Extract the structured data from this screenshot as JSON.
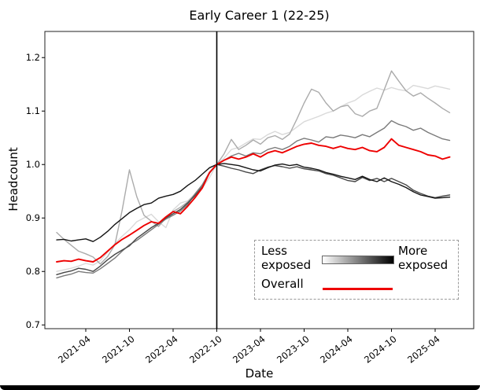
{
  "window": {
    "background_color": "#ffffff",
    "bottom_frame_color": "#000000"
  },
  "chart_data": {
    "type": "line",
    "title": "Early Career 1 (22-25)",
    "xlabel": "Date",
    "ylabel": "Headcount",
    "x_tick_labels": [
      "2021-04",
      "2021-10",
      "2022-04",
      "2022-10",
      "2023-04",
      "2023-10",
      "2024-04",
      "2024-10",
      "2025-04"
    ],
    "x_tick_point_indices": [
      4,
      10,
      16,
      22,
      28,
      34,
      40,
      46,
      52
    ],
    "y_tick_labels": [
      "0.7",
      "0.8",
      "0.9",
      "1.0",
      "1.1",
      "1.2"
    ],
    "y_tick_values": [
      0.7,
      0.8,
      0.9,
      1.0,
      1.1,
      1.2
    ],
    "ylim": [
      0.693,
      1.249
    ],
    "grid": false,
    "n_points": 55,
    "vline_at_point_index": 22,
    "vline_color": "#000000",
    "axes_color": "#222222",
    "legend": {
      "position": "lower-right",
      "border_style": "dashed",
      "less_label": "Less exposed",
      "more_label": "More exposed",
      "overall_label": "Overall",
      "gradient_colors": [
        "#ffffff",
        "#000000"
      ],
      "overall_color": "#ee0000"
    },
    "series": [
      {
        "name": "quintile-1-least-exposed",
        "color": "#d9d9d9",
        "width": 1.4,
        "values": [
          0.8,
          0.803,
          0.806,
          0.81,
          0.815,
          0.812,
          0.82,
          0.836,
          0.852,
          0.866,
          0.878,
          0.893,
          0.9,
          0.907,
          0.893,
          0.882,
          0.915,
          0.928,
          0.932,
          0.944,
          0.956,
          0.976,
          1.0,
          1.012,
          1.028,
          1.032,
          1.04,
          1.048,
          1.047,
          1.056,
          1.062,
          1.056,
          1.06,
          1.07,
          1.08,
          1.085,
          1.09,
          1.096,
          1.1,
          1.108,
          1.115,
          1.12,
          1.13,
          1.137,
          1.143,
          1.139,
          1.144,
          1.14,
          1.138,
          1.148,
          1.145,
          1.142,
          1.147,
          1.144,
          1.141
        ]
      },
      {
        "name": "quintile-2",
        "color": "#ababab",
        "width": 1.4,
        "values": [
          0.873,
          0.86,
          0.849,
          0.838,
          0.833,
          0.827,
          0.814,
          0.828,
          0.85,
          0.915,
          0.99,
          0.94,
          0.905,
          0.894,
          0.884,
          0.9,
          0.912,
          0.92,
          0.93,
          0.945,
          0.96,
          0.984,
          1.0,
          1.02,
          1.047,
          1.028,
          1.036,
          1.046,
          1.038,
          1.05,
          1.054,
          1.047,
          1.057,
          1.085,
          1.115,
          1.141,
          1.135,
          1.115,
          1.1,
          1.108,
          1.111,
          1.095,
          1.09,
          1.1,
          1.105,
          1.14,
          1.175,
          1.156,
          1.138,
          1.128,
          1.134,
          1.124,
          1.115,
          1.105,
          1.097
        ]
      },
      {
        "name": "quintile-3",
        "color": "#7a7a7a",
        "width": 1.4,
        "values": [
          0.788,
          0.792,
          0.795,
          0.8,
          0.798,
          0.797,
          0.805,
          0.815,
          0.825,
          0.838,
          0.85,
          0.858,
          0.868,
          0.878,
          0.888,
          0.898,
          0.905,
          0.913,
          0.925,
          0.945,
          0.962,
          0.986,
          1.0,
          1.008,
          1.016,
          1.021,
          1.016,
          1.022,
          1.02,
          1.028,
          1.032,
          1.028,
          1.034,
          1.044,
          1.049,
          1.046,
          1.042,
          1.052,
          1.05,
          1.055,
          1.053,
          1.05,
          1.056,
          1.052,
          1.06,
          1.068,
          1.082,
          1.075,
          1.071,
          1.064,
          1.068,
          1.06,
          1.054,
          1.048,
          1.045
        ]
      },
      {
        "name": "quintile-4",
        "color": "#474747",
        "width": 1.4,
        "values": [
          0.794,
          0.798,
          0.801,
          0.806,
          0.804,
          0.8,
          0.81,
          0.822,
          0.832,
          0.84,
          0.848,
          0.862,
          0.872,
          0.882,
          0.89,
          0.9,
          0.908,
          0.916,
          0.928,
          0.942,
          0.958,
          0.984,
          1.0,
          0.997,
          0.993,
          0.99,
          0.986,
          0.983,
          0.99,
          0.995,
          0.998,
          0.996,
          0.993,
          0.996,
          0.992,
          0.99,
          0.988,
          0.983,
          0.98,
          0.975,
          0.97,
          0.968,
          0.976,
          0.97,
          0.974,
          0.968,
          0.974,
          0.968,
          0.962,
          0.952,
          0.946,
          0.941,
          0.938,
          0.941,
          0.943
        ]
      },
      {
        "name": "quintile-5-most-exposed",
        "color": "#141414",
        "width": 1.4,
        "values": [
          0.859,
          0.86,
          0.857,
          0.859,
          0.861,
          0.856,
          0.864,
          0.875,
          0.888,
          0.899,
          0.91,
          0.918,
          0.925,
          0.928,
          0.937,
          0.941,
          0.944,
          0.95,
          0.961,
          0.97,
          0.982,
          0.994,
          1.0,
          1.002,
          1.0,
          0.998,
          0.994,
          0.99,
          0.988,
          0.994,
          0.999,
          1.001,
          0.998,
          1.0,
          0.995,
          0.993,
          0.99,
          0.985,
          0.982,
          0.978,
          0.975,
          0.972,
          0.978,
          0.972,
          0.968,
          0.975,
          0.968,
          0.963,
          0.957,
          0.949,
          0.943,
          0.94,
          0.937,
          0.938,
          0.939
        ]
      },
      {
        "name": "overall",
        "color": "#ee0000",
        "width": 1.9,
        "values": [
          0.818,
          0.82,
          0.819,
          0.823,
          0.82,
          0.818,
          0.826,
          0.838,
          0.85,
          0.86,
          0.868,
          0.877,
          0.886,
          0.893,
          0.89,
          0.902,
          0.912,
          0.908,
          0.922,
          0.938,
          0.956,
          0.985,
          1.0,
          1.008,
          1.014,
          1.01,
          1.014,
          1.02,
          1.014,
          1.022,
          1.026,
          1.022,
          1.028,
          1.034,
          1.038,
          1.04,
          1.036,
          1.034,
          1.03,
          1.034,
          1.03,
          1.028,
          1.032,
          1.026,
          1.024,
          1.032,
          1.048,
          1.036,
          1.032,
          1.028,
          1.024,
          1.018,
          1.016,
          1.01,
          1.014
        ]
      }
    ]
  }
}
